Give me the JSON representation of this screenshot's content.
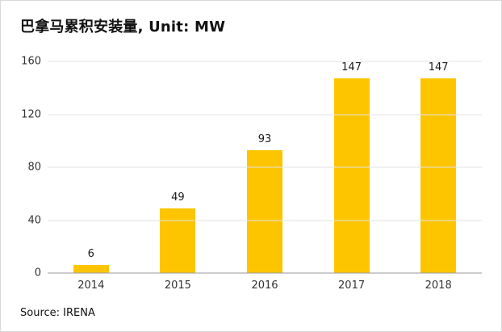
{
  "chart": {
    "title": "巴拿马累积安装量, Unit: MW",
    "source": "Source: IRENA"
  },
  "chart_data": {
    "type": "bar",
    "title": "巴拿马累积安装量, Unit: MW",
    "categories": [
      "2014",
      "2015",
      "2016",
      "2017",
      "2018"
    ],
    "values": [
      6,
      49,
      93,
      147,
      147
    ],
    "xlabel": "",
    "ylabel": "",
    "ylim": [
      0,
      160
    ],
    "yticks": [
      0,
      40,
      80,
      120,
      160
    ],
    "unit": "MW",
    "bar_color": "#fdc500",
    "grid": true,
    "legend": false,
    "source": "Source: IRENA"
  }
}
